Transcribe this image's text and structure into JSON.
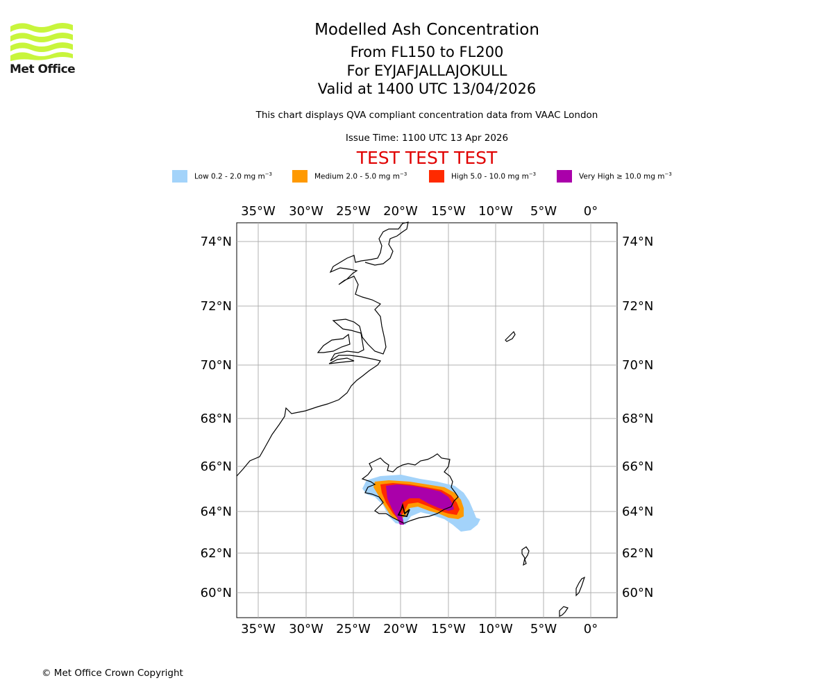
{
  "header": {
    "title_lines": [
      "Modelled Ash Concentration",
      "From FL150 to FL200",
      "For EYJAFJALLAJOKULL",
      "Valid at 1400 UTC 13/04/2026"
    ],
    "description": "This chart displays QVA compliant concentration data from VAAC London",
    "issue_time": "Issue Time: 1100 UTC 13 Apr 2026",
    "test_banner": "TEST TEST TEST"
  },
  "logo": {
    "text": "Met Office",
    "color": "#c8f53c"
  },
  "legend": [
    {
      "label": "Low 0.2 - 2.0 mg m",
      "sup": "−3",
      "color": "#a3d3fa"
    },
    {
      "label": "Medium 2.0 - 5.0 mg m",
      "sup": "−3",
      "color": "#ff9900"
    },
    {
      "label": "High 5.0 - 10.0 mg m",
      "sup": "−3",
      "color": "#ff2a00"
    },
    {
      "label": "Very High  ≥  10.0 mg m",
      "sup": "−3",
      "color": "#aa00aa"
    }
  ],
  "map": {
    "lon_labels": [
      "35°W",
      "30°W",
      "25°W",
      "20°W",
      "15°W",
      "10°W",
      "5°W",
      "0°"
    ],
    "lat_labels": [
      "74°N",
      "72°N",
      "70°N",
      "68°N",
      "66°N",
      "64°N",
      "62°N",
      "60°N"
    ],
    "colors": {
      "low": "#a3d3fa",
      "medium": "#ff9900",
      "high": "#ff2a00",
      "very_high": "#aa00aa",
      "grid": "#b0b0b0"
    }
  },
  "footer": {
    "copyright": "© Met Office Crown Copyright"
  }
}
